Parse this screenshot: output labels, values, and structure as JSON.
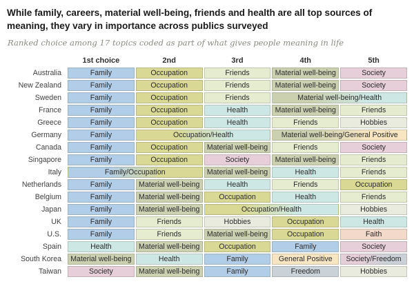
{
  "title": "While family, careers, material well-being, friends and health are all top sources of meaning, they vary in importance across publics surveyed",
  "subtitle": "Ranked choice among 17 topics coded as part of what gives people meaning in life",
  "chart_data": {
    "type": "table",
    "title": "While family, careers, material well-being, friends and health are all top sources of meaning, they vary in importance across publics surveyed",
    "subtitle": "Ranked choice among 17 topics coded as part of what gives people meaning in life",
    "columns": [
      "1st choice",
      "2nd",
      "3rd",
      "4th",
      "5th"
    ],
    "category_colors": {
      "Family": "#b2cde7",
      "Occupation": "#d9d995",
      "Friends": "#e6ecd0",
      "Material well-being": "#cbd1b0",
      "Society": "#e7cfd9",
      "Health": "#cde8e4",
      "Hobbies": "#e9ebdf",
      "Faith": "#f2d9ca",
      "General Positive": "#f8e6c3",
      "Freedom": "#cbd2d7"
    },
    "rows": [
      {
        "country": "Australia",
        "cells": [
          {
            "label": "Family",
            "span": 1,
            "colors": [
              "Family"
            ]
          },
          {
            "label": "Occupation",
            "span": 1,
            "colors": [
              "Occupation"
            ]
          },
          {
            "label": "Friends",
            "span": 1,
            "colors": [
              "Friends"
            ]
          },
          {
            "label": "Material well-being",
            "span": 1,
            "colors": [
              "Material well-being"
            ]
          },
          {
            "label": "Society",
            "span": 1,
            "colors": [
              "Society"
            ]
          }
        ]
      },
      {
        "country": "New Zealand",
        "cells": [
          {
            "label": "Family",
            "span": 1,
            "colors": [
              "Family"
            ]
          },
          {
            "label": "Occupation",
            "span": 1,
            "colors": [
              "Occupation"
            ]
          },
          {
            "label": "Friends",
            "span": 1,
            "colors": [
              "Friends"
            ]
          },
          {
            "label": "Material well-being",
            "span": 1,
            "colors": [
              "Material well-being"
            ]
          },
          {
            "label": "Society",
            "span": 1,
            "colors": [
              "Society"
            ]
          }
        ]
      },
      {
        "country": "Sweden",
        "cells": [
          {
            "label": "Family",
            "span": 1,
            "colors": [
              "Family"
            ]
          },
          {
            "label": "Occupation",
            "span": 1,
            "colors": [
              "Occupation"
            ]
          },
          {
            "label": "Friends",
            "span": 1,
            "colors": [
              "Friends"
            ]
          },
          {
            "label": "Material well-being/Health",
            "span": 2,
            "colors": [
              "Material well-being",
              "Health"
            ]
          }
        ]
      },
      {
        "country": "France",
        "cells": [
          {
            "label": "Family",
            "span": 1,
            "colors": [
              "Family"
            ]
          },
          {
            "label": "Occupation",
            "span": 1,
            "colors": [
              "Occupation"
            ]
          },
          {
            "label": "Health",
            "span": 1,
            "colors": [
              "Health"
            ]
          },
          {
            "label": "Material well-being",
            "span": 1,
            "colors": [
              "Material well-being"
            ]
          },
          {
            "label": "Friends",
            "span": 1,
            "colors": [
              "Friends"
            ]
          }
        ]
      },
      {
        "country": "Greece",
        "cells": [
          {
            "label": "Family",
            "span": 1,
            "colors": [
              "Family"
            ]
          },
          {
            "label": "Occupation",
            "span": 1,
            "colors": [
              "Occupation"
            ]
          },
          {
            "label": "Health",
            "span": 1,
            "colors": [
              "Health"
            ]
          },
          {
            "label": "Friends",
            "span": 1,
            "colors": [
              "Friends"
            ]
          },
          {
            "label": "Hobbies",
            "span": 1,
            "colors": [
              "Hobbies"
            ]
          }
        ]
      },
      {
        "country": "Germany",
        "cells": [
          {
            "label": "Family",
            "span": 1,
            "colors": [
              "Family"
            ]
          },
          {
            "label": "Occupation/Health",
            "span": 2,
            "colors": [
              "Occupation",
              "Health"
            ]
          },
          {
            "label": "Material well-being/General Positive",
            "span": 2,
            "colors": [
              "Material well-being",
              "General Positive"
            ]
          }
        ]
      },
      {
        "country": "Canada",
        "cells": [
          {
            "label": "Family",
            "span": 1,
            "colors": [
              "Family"
            ]
          },
          {
            "label": "Occupation",
            "span": 1,
            "colors": [
              "Occupation"
            ]
          },
          {
            "label": "Material well-being",
            "span": 1,
            "colors": [
              "Material well-being"
            ]
          },
          {
            "label": "Friends",
            "span": 1,
            "colors": [
              "Friends"
            ]
          },
          {
            "label": "Society",
            "span": 1,
            "colors": [
              "Society"
            ]
          }
        ]
      },
      {
        "country": "Singapore",
        "cells": [
          {
            "label": "Family",
            "span": 1,
            "colors": [
              "Family"
            ]
          },
          {
            "label": "Occupation",
            "span": 1,
            "colors": [
              "Occupation"
            ]
          },
          {
            "label": "Society",
            "span": 1,
            "colors": [
              "Society"
            ]
          },
          {
            "label": "Material well-being",
            "span": 1,
            "colors": [
              "Material well-being"
            ]
          },
          {
            "label": "Friends",
            "span": 1,
            "colors": [
              "Friends"
            ]
          }
        ]
      },
      {
        "country": "Italy",
        "cells": [
          {
            "label": "Family/Occupation",
            "span": 2,
            "colors": [
              "Family",
              "Occupation"
            ]
          },
          {
            "label": "Material well-being",
            "span": 1,
            "colors": [
              "Material well-being"
            ]
          },
          {
            "label": "Health",
            "span": 1,
            "colors": [
              "Health"
            ]
          },
          {
            "label": "Friends",
            "span": 1,
            "colors": [
              "Friends"
            ]
          }
        ]
      },
      {
        "country": "Netherlands",
        "cells": [
          {
            "label": "Family",
            "span": 1,
            "colors": [
              "Family"
            ]
          },
          {
            "label": "Material well-being",
            "span": 1,
            "colors": [
              "Material well-being"
            ]
          },
          {
            "label": "Health",
            "span": 1,
            "colors": [
              "Health"
            ]
          },
          {
            "label": "Friends",
            "span": 1,
            "colors": [
              "Friends"
            ]
          },
          {
            "label": "Occupation",
            "span": 1,
            "colors": [
              "Occupation"
            ]
          }
        ]
      },
      {
        "country": "Belgium",
        "cells": [
          {
            "label": "Family",
            "span": 1,
            "colors": [
              "Family"
            ]
          },
          {
            "label": "Material well-being",
            "span": 1,
            "colors": [
              "Material well-being"
            ]
          },
          {
            "label": "Occupation",
            "span": 1,
            "colors": [
              "Occupation"
            ]
          },
          {
            "label": "Health",
            "span": 1,
            "colors": [
              "Health"
            ]
          },
          {
            "label": "Friends",
            "span": 1,
            "colors": [
              "Friends"
            ]
          }
        ]
      },
      {
        "country": "Japan",
        "cells": [
          {
            "label": "Family",
            "span": 1,
            "colors": [
              "Family"
            ]
          },
          {
            "label": "Material well-being",
            "span": 1,
            "colors": [
              "Material well-being"
            ]
          },
          {
            "label": "Occupation/Health",
            "span": 2,
            "colors": [
              "Occupation",
              "Health"
            ]
          },
          {
            "label": "Hobbies",
            "span": 1,
            "colors": [
              "Hobbies"
            ]
          }
        ]
      },
      {
        "country": "UK",
        "cells": [
          {
            "label": "Family",
            "span": 1,
            "colors": [
              "Family"
            ]
          },
          {
            "label": "Friends",
            "span": 1,
            "colors": [
              "Friends"
            ]
          },
          {
            "label": "Hobbies",
            "span": 1,
            "colors": [
              "Hobbies"
            ]
          },
          {
            "label": "Occupation",
            "span": 1,
            "colors": [
              "Occupation"
            ]
          },
          {
            "label": "Health",
            "span": 1,
            "colors": [
              "Health"
            ]
          }
        ]
      },
      {
        "country": "U.S.",
        "cells": [
          {
            "label": "Family",
            "span": 1,
            "colors": [
              "Family"
            ]
          },
          {
            "label": "Friends",
            "span": 1,
            "colors": [
              "Friends"
            ]
          },
          {
            "label": "Material well-being",
            "span": 1,
            "colors": [
              "Material well-being"
            ]
          },
          {
            "label": "Occupation",
            "span": 1,
            "colors": [
              "Occupation"
            ]
          },
          {
            "label": "Faith",
            "span": 1,
            "colors": [
              "Faith"
            ]
          }
        ]
      },
      {
        "country": "Spain",
        "cells": [
          {
            "label": "Health",
            "span": 1,
            "colors": [
              "Health"
            ]
          },
          {
            "label": "Material well-being",
            "span": 1,
            "colors": [
              "Material well-being"
            ]
          },
          {
            "label": "Occupation",
            "span": 1,
            "colors": [
              "Occupation"
            ]
          },
          {
            "label": "Family",
            "span": 1,
            "colors": [
              "Family"
            ]
          },
          {
            "label": "Society",
            "span": 1,
            "colors": [
              "Society"
            ]
          }
        ]
      },
      {
        "country": "South Korea",
        "cells": [
          {
            "label": "Material well-being",
            "span": 1,
            "colors": [
              "Material well-being"
            ]
          },
          {
            "label": "Health",
            "span": 1,
            "colors": [
              "Health"
            ]
          },
          {
            "label": "Family",
            "span": 1,
            "colors": [
              "Family"
            ]
          },
          {
            "label": "General Positive",
            "span": 1,
            "colors": [
              "General Positive"
            ]
          },
          {
            "label": "Society/Freedom",
            "span": 1,
            "colors": [
              "Society",
              "Freedom"
            ]
          }
        ]
      },
      {
        "country": "Taiwan",
        "cells": [
          {
            "label": "Society",
            "span": 1,
            "colors": [
              "Society"
            ]
          },
          {
            "label": "Material well-being",
            "span": 1,
            "colors": [
              "Material well-being"
            ]
          },
          {
            "label": "Family",
            "span": 1,
            "colors": [
              "Family"
            ]
          },
          {
            "label": "Freedom",
            "span": 1,
            "colors": [
              "Freedom"
            ]
          },
          {
            "label": "Hobbies",
            "span": 1,
            "colors": [
              "Hobbies"
            ]
          }
        ]
      }
    ]
  }
}
